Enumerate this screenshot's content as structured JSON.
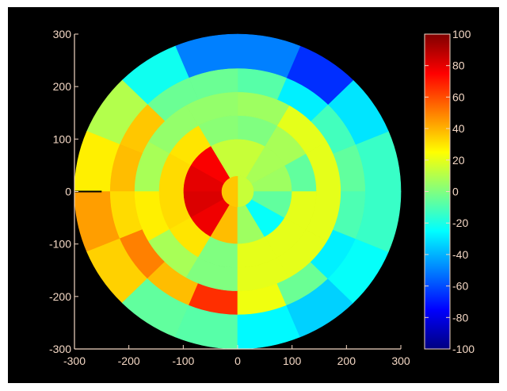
{
  "colors": {
    "background": "#000000",
    "frame": "#ffffff",
    "axis": "#f3d7c4",
    "tick_text": "#f3d7c4",
    "cut_marker": "#000000"
  },
  "chart_data": [
    {
      "type": "heatmap",
      "subtype": "polar-segment-map",
      "title": "",
      "xlabel": "",
      "ylabel": "",
      "xlim": [
        -300,
        300
      ],
      "ylim": [
        -300,
        300
      ],
      "xticks": [
        "-300",
        "-200",
        "-100",
        "0",
        "100",
        "200",
        "300"
      ],
      "yticks": [
        "300",
        "200",
        "100",
        "0",
        "-100",
        "-200",
        "-300"
      ],
      "grid": false,
      "angle_convention": "degrees counterclockwise from +x axis",
      "cut_marker": {
        "x": [
          -300,
          -250
        ],
        "y": [
          0,
          0
        ]
      },
      "rings": [
        {
          "name": "ring-1",
          "r_inner": 0,
          "r_outer": 30,
          "segments": [
            {
              "theta1": -90,
              "theta2": 90,
              "value": 14
            },
            {
              "theta1": 90,
              "theta2": 270,
              "value": 36
            }
          ]
        },
        {
          "name": "ring-2",
          "r_inner": 30,
          "r_outer": 100,
          "segments": [
            {
              "theta1": 0,
              "theta2": 30,
              "value": 6
            },
            {
              "theta1": 30,
              "theta2": 60,
              "value": 8
            },
            {
              "theta1": 60,
              "theta2": 90,
              "value": 14
            },
            {
              "theta1": 90,
              "theta2": 120,
              "value": 14
            },
            {
              "theta1": 120,
              "theta2": 150,
              "value": 76
            },
            {
              "theta1": 150,
              "theta2": 180,
              "value": 80
            },
            {
              "theta1": 180,
              "theta2": 210,
              "value": 82
            },
            {
              "theta1": 210,
              "theta2": 240,
              "value": 78
            },
            {
              "theta1": 240,
              "theta2": 270,
              "value": 38
            },
            {
              "theta1": 270,
              "theta2": 300,
              "value": 6
            },
            {
              "theta1": 300,
              "theta2": 330,
              "value": -24
            },
            {
              "theta1": 330,
              "theta2": 360,
              "value": -6
            }
          ]
        },
        {
          "name": "ring-3",
          "r_inner": 100,
          "r_outer": 145,
          "segments": [
            {
              "theta1": 0,
              "theta2": 30,
              "value": -6
            },
            {
              "theta1": 30,
              "theta2": 60,
              "value": 8
            },
            {
              "theta1": 60,
              "theta2": 90,
              "value": 0
            },
            {
              "theta1": 90,
              "theta2": 120,
              "value": 2
            },
            {
              "theta1": 120,
              "theta2": 150,
              "value": 30
            },
            {
              "theta1": 150,
              "theta2": 180,
              "value": 32
            },
            {
              "theta1": 180,
              "theta2": 210,
              "value": 32
            },
            {
              "theta1": 210,
              "theta2": 240,
              "value": 30
            },
            {
              "theta1": 240,
              "theta2": 270,
              "value": 0
            },
            {
              "theta1": 270,
              "theta2": 300,
              "value": 20
            },
            {
              "theta1": 300,
              "theta2": 330,
              "value": 20
            },
            {
              "theta1": 330,
              "theta2": 360,
              "value": 20
            }
          ]
        },
        {
          "name": "ring-4",
          "r_inner": 145,
          "r_outer": 190,
          "segments": [
            {
              "theta1": 0,
              "theta2": 30,
              "value": 20
            },
            {
              "theta1": 30,
              "theta2": 60,
              "value": 20
            },
            {
              "theta1": 60,
              "theta2": 90,
              "value": 6
            },
            {
              "theta1": 90,
              "theta2": 120,
              "value": 4
            },
            {
              "theta1": 120,
              "theta2": 150,
              "value": 4
            },
            {
              "theta1": 150,
              "theta2": 180,
              "value": 8
            },
            {
              "theta1": 180,
              "theta2": 210,
              "value": 28
            },
            {
              "theta1": 210,
              "theta2": 240,
              "value": 8
            },
            {
              "theta1": 240,
              "theta2": 270,
              "value": 0
            },
            {
              "theta1": 270,
              "theta2": 300,
              "value": 20
            },
            {
              "theta1": 300,
              "theta2": 330,
              "value": 20
            },
            {
              "theta1": 330,
              "theta2": 360,
              "value": 20
            }
          ]
        },
        {
          "name": "ring-5",
          "r_inner": 190,
          "r_outer": 235,
          "segments": [
            {
              "theta1": 0,
              "theta2": 22.5,
              "value": -6
            },
            {
              "theta1": 22.5,
              "theta2": 45,
              "value": -12
            },
            {
              "theta1": 45,
              "theta2": 67.5,
              "value": -28
            },
            {
              "theta1": 67.5,
              "theta2": 90,
              "value": -8
            },
            {
              "theta1": 90,
              "theta2": 112.5,
              "value": -4
            },
            {
              "theta1": 112.5,
              "theta2": 135,
              "value": -4
            },
            {
              "theta1": 135,
              "theta2": 157.5,
              "value": 36
            },
            {
              "theta1": 157.5,
              "theta2": 180,
              "value": 38
            },
            {
              "theta1": 180,
              "theta2": 202.5,
              "value": 32
            },
            {
              "theta1": 202.5,
              "theta2": 225,
              "value": 50
            },
            {
              "theta1": 225,
              "theta2": 247.5,
              "value": 38
            },
            {
              "theta1": 247.5,
              "theta2": 270,
              "value": 66
            },
            {
              "theta1": 270,
              "theta2": 292.5,
              "value": 22
            },
            {
              "theta1": 292.5,
              "theta2": 315,
              "value": -4
            },
            {
              "theta1": 315,
              "theta2": 337.5,
              "value": -28
            },
            {
              "theta1": 337.5,
              "theta2": 360,
              "value": -10
            }
          ]
        },
        {
          "name": "ring-6",
          "r_inner": 235,
          "r_outer": 300,
          "segments": [
            {
              "theta1": 0,
              "theta2": 22.5,
              "value": -14
            },
            {
              "theta1": 22.5,
              "theta2": 45,
              "value": -30
            },
            {
              "theta1": 45,
              "theta2": 67.5,
              "value": -66
            },
            {
              "theta1": 67.5,
              "theta2": 90,
              "value": -50
            },
            {
              "theta1": 90,
              "theta2": 112.5,
              "value": -50
            },
            {
              "theta1": 112.5,
              "theta2": 135,
              "value": -22
            },
            {
              "theta1": 135,
              "theta2": 157.5,
              "value": 10
            },
            {
              "theta1": 157.5,
              "theta2": 180,
              "value": 28
            },
            {
              "theta1": 180,
              "theta2": 202.5,
              "value": 44
            },
            {
              "theta1": 202.5,
              "theta2": 225,
              "value": 34
            },
            {
              "theta1": 225,
              "theta2": 247.5,
              "value": -6
            },
            {
              "theta1": 247.5,
              "theta2": 270,
              "value": -8
            },
            {
              "theta1": 270,
              "theta2": 292.5,
              "value": -26
            },
            {
              "theta1": 292.5,
              "theta2": 315,
              "value": -34
            },
            {
              "theta1": 315,
              "theta2": 337.5,
              "value": -24
            },
            {
              "theta1": 337.5,
              "theta2": 360,
              "value": -14
            }
          ]
        }
      ]
    },
    {
      "type": "colorbar",
      "title": "",
      "clim": [
        -100,
        100
      ],
      "ticks": [
        "100",
        "80",
        "60",
        "40",
        "20",
        "0",
        "-20",
        "-40",
        "-60",
        "-80",
        "-100"
      ],
      "colormap": "jet"
    }
  ]
}
